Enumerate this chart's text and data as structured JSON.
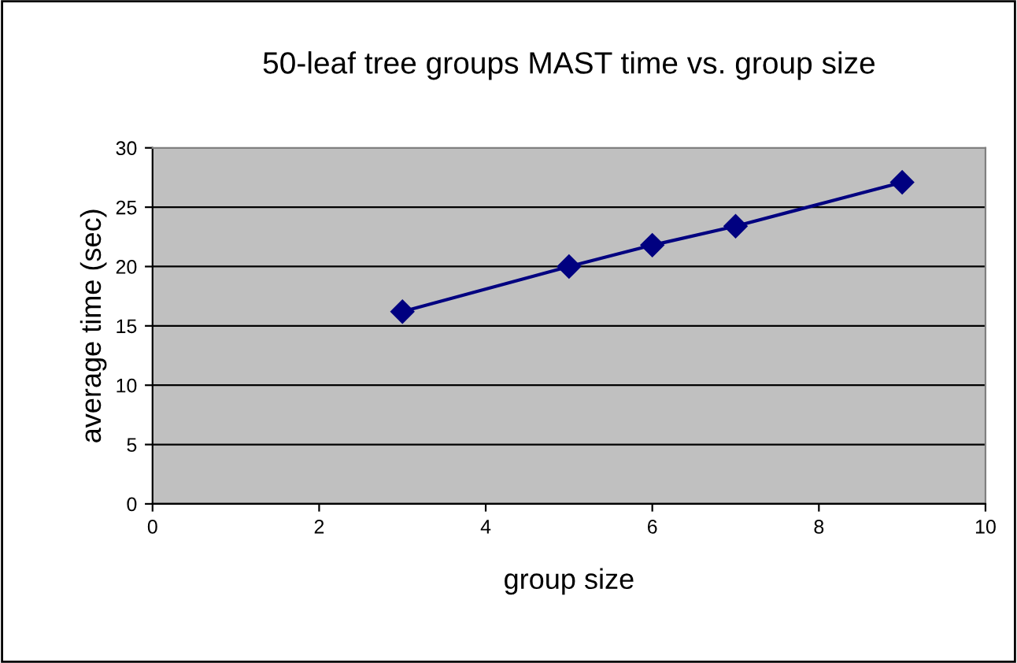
{
  "chart_data": {
    "type": "line",
    "title": "50-leaf tree groups MAST time vs. group size",
    "xlabel": "group size",
    "ylabel": "average time (sec)",
    "x": [
      3,
      5,
      6,
      7,
      9
    ],
    "series": [
      {
        "color": "#000080",
        "values": [
          16.2,
          20.0,
          21.8,
          23.4,
          27.1
        ]
      }
    ],
    "xlim": [
      0,
      10
    ],
    "xticks": [
      0,
      2,
      4,
      6,
      8,
      10
    ],
    "ylim": [
      0,
      30
    ],
    "yticks": [
      0,
      5,
      10,
      15,
      20,
      25,
      30
    ],
    "grid": "y",
    "marker": "diamond",
    "line_style": "solid"
  }
}
